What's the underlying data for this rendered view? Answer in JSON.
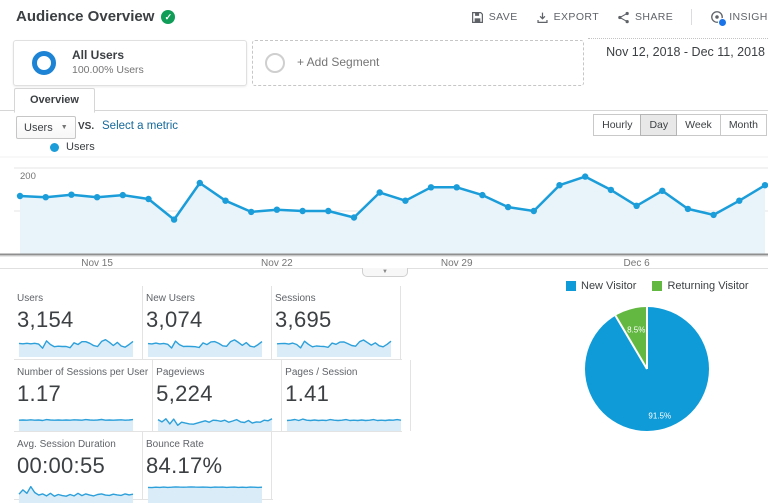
{
  "header": {
    "title": "Audience Overview",
    "actions": [
      {
        "id": "save",
        "label": "SAVE"
      },
      {
        "id": "export",
        "label": "EXPORT"
      },
      {
        "id": "share",
        "label": "SHARE"
      },
      {
        "id": "insights",
        "label": "INSIGHTS"
      }
    ]
  },
  "toolbar": {
    "date_range": "Nov 12, 2018 - Dec 11, 2018"
  },
  "segments": {
    "active": {
      "name": "All Users",
      "detail": "100.00% Users"
    },
    "add_label": "+ Add Segment"
  },
  "tabs": [
    {
      "label": "Overview",
      "active": true
    }
  ],
  "metric_picker": {
    "selected": "Users",
    "vs_label": "VS.",
    "compare_link": "Select a metric"
  },
  "granularity": {
    "options": [
      "Hourly",
      "Day",
      "Week",
      "Month"
    ],
    "selected": "Day"
  },
  "timeseries_legend": "Users",
  "chart_data": [
    {
      "type": "line",
      "title": "Users",
      "x_start": "Nov 12, 2018",
      "x_end": "Dec 11, 2018",
      "x_tick_labels": [
        "Nov 15",
        "Nov 22",
        "Nov 29",
        "Dec 6"
      ],
      "x_tick_indices": [
        3,
        10,
        17,
        24
      ],
      "ylim": [
        0,
        200
      ],
      "yticks": [
        100,
        200
      ],
      "values": [
        135,
        132,
        138,
        132,
        137,
        128,
        80,
        165,
        124,
        98,
        103,
        100,
        100,
        85,
        143,
        124,
        155,
        155,
        137,
        109,
        100,
        160,
        180,
        149,
        112,
        147,
        105,
        91,
        124,
        160
      ],
      "line_color": "#1b9dd9",
      "fill_color": "#e9f3fa",
      "legend_position": "top-left",
      "grid": true
    },
    {
      "type": "pie",
      "labels": [
        "New Visitor",
        "Returning Visitor"
      ],
      "values": [
        91.5,
        8.5
      ],
      "value_labels": [
        "91.5%",
        "8.5%"
      ],
      "colors": [
        "#0e9bd8",
        "#63b842"
      ],
      "legend_position": "top"
    }
  ],
  "metrics": [
    {
      "label": "Users",
      "value": "3,154",
      "spark": [
        0.68,
        0.66,
        0.69,
        0.66,
        0.69,
        0.64,
        0.4,
        0.83,
        0.62,
        0.49,
        0.52,
        0.5,
        0.5,
        0.43,
        0.72,
        0.62,
        0.78,
        0.78,
        0.69,
        0.55,
        0.5,
        0.8,
        0.9,
        0.75,
        0.56,
        0.74,
        0.53,
        0.46,
        0.62,
        0.8
      ]
    },
    {
      "label": "New Users",
      "value": "3,074",
      "spark": [
        0.67,
        0.65,
        0.7,
        0.65,
        0.68,
        0.63,
        0.41,
        0.82,
        0.61,
        0.5,
        0.51,
        0.5,
        0.49,
        0.44,
        0.71,
        0.61,
        0.77,
        0.79,
        0.68,
        0.54,
        0.51,
        0.79,
        0.89,
        0.74,
        0.57,
        0.73,
        0.52,
        0.47,
        0.61,
        0.79
      ]
    },
    {
      "label": "Sessions",
      "value": "3,695",
      "spark": [
        0.66,
        0.67,
        0.68,
        0.64,
        0.7,
        0.62,
        0.42,
        0.81,
        0.63,
        0.48,
        0.53,
        0.51,
        0.5,
        0.45,
        0.7,
        0.63,
        0.76,
        0.77,
        0.67,
        0.56,
        0.52,
        0.78,
        0.88,
        0.73,
        0.58,
        0.72,
        0.54,
        0.48,
        0.63,
        0.81
      ]
    },
    {
      "label": "Number of Sessions per User",
      "value": "1.17",
      "spark": [
        0.52,
        0.53,
        0.52,
        0.54,
        0.52,
        0.53,
        0.5,
        0.55,
        0.53,
        0.52,
        0.53,
        0.52,
        0.53,
        0.52,
        0.54,
        0.53,
        0.52,
        0.55,
        0.53,
        0.52,
        0.53,
        0.56,
        0.52,
        0.53,
        0.52,
        0.53,
        0.54,
        0.52,
        0.53,
        0.55
      ]
    },
    {
      "label": "Pageviews",
      "value": "5,224",
      "spark": [
        0.55,
        0.42,
        0.6,
        0.3,
        0.58,
        0.22,
        0.4,
        0.35,
        0.3,
        0.28,
        0.35,
        0.42,
        0.48,
        0.4,
        0.52,
        0.5,
        0.45,
        0.52,
        0.4,
        0.47,
        0.55,
        0.42,
        0.38,
        0.5,
        0.35,
        0.42,
        0.4,
        0.52,
        0.48,
        0.6
      ]
    },
    {
      "label": "Pages / Session",
      "value": "1.41",
      "spark": [
        0.5,
        0.52,
        0.56,
        0.5,
        0.58,
        0.52,
        0.5,
        0.53,
        0.5,
        0.52,
        0.5,
        0.55,
        0.52,
        0.5,
        0.52,
        0.55,
        0.5,
        0.52,
        0.5,
        0.53,
        0.5,
        0.52,
        0.55,
        0.5,
        0.52,
        0.5,
        0.53,
        0.52,
        0.55,
        0.52
      ]
    },
    {
      "label": "Avg. Session Duration",
      "value": "00:00:55",
      "spark": [
        0.4,
        0.65,
        0.45,
        0.85,
        0.5,
        0.35,
        0.42,
        0.3,
        0.45,
        0.28,
        0.38,
        0.32,
        0.28,
        0.38,
        0.3,
        0.45,
        0.32,
        0.42,
        0.35,
        0.3,
        0.38,
        0.42,
        0.35,
        0.33,
        0.4,
        0.36,
        0.33,
        0.42,
        0.36,
        0.4
      ]
    },
    {
      "label": "Bounce Rate",
      "value": "84.17%",
      "spark": [
        0.8,
        0.79,
        0.81,
        0.8,
        0.82,
        0.8,
        0.81,
        0.83,
        0.82,
        0.81,
        0.82,
        0.83,
        0.82,
        0.81,
        0.82,
        0.81,
        0.8,
        0.82,
        0.81,
        0.82,
        0.8,
        0.81,
        0.82,
        0.8,
        0.81,
        0.8,
        0.82,
        0.81,
        0.8,
        0.81
      ]
    }
  ]
}
